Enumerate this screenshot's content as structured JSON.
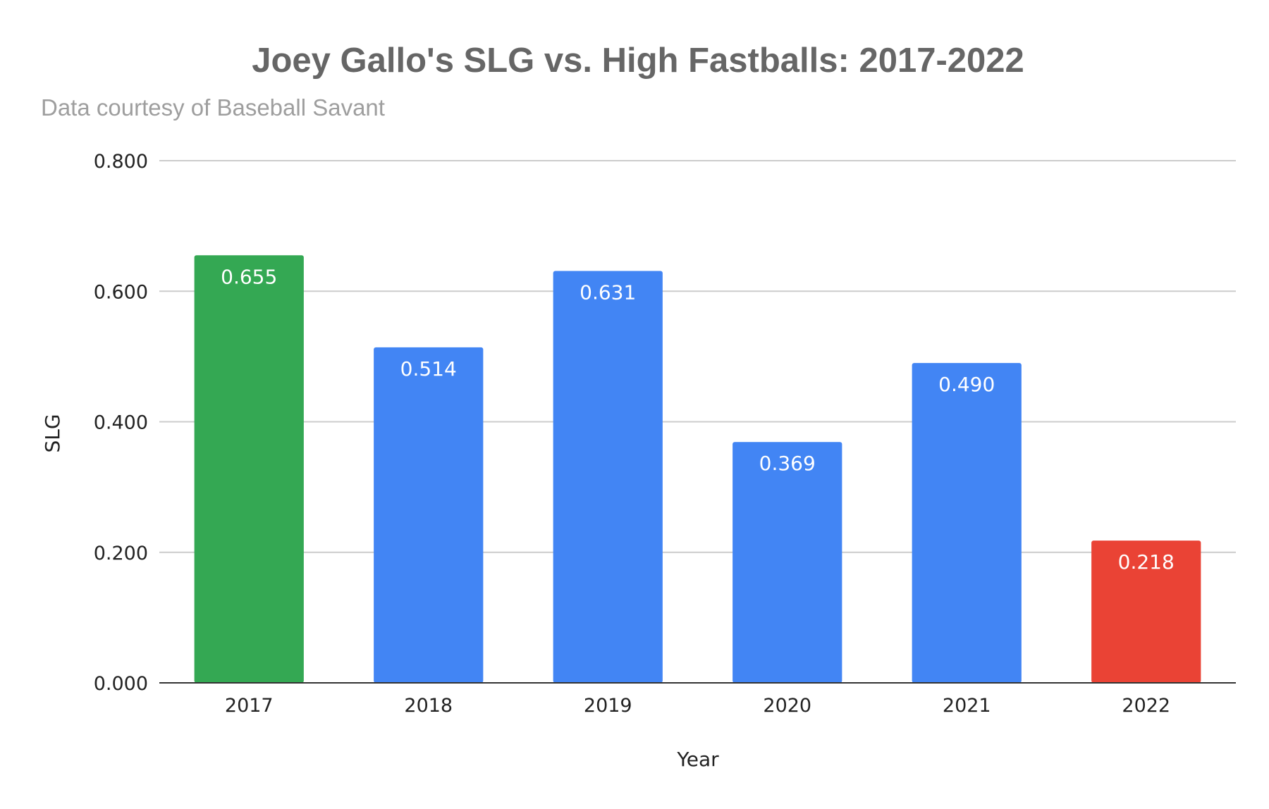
{
  "chart_data": {
    "type": "bar",
    "title": "Joey Gallo's SLG vs. High Fastballs: 2017-2022",
    "subtitle": "Data courtesy of Baseball Savant",
    "xlabel": "Year",
    "ylabel": "SLG",
    "categories": [
      "2017",
      "2018",
      "2019",
      "2020",
      "2021",
      "2022"
    ],
    "values": [
      0.655,
      0.514,
      0.631,
      0.369,
      0.49,
      0.218
    ],
    "data_labels": [
      "0.655",
      "0.514",
      "0.631",
      "0.369",
      "0.490",
      "0.218"
    ],
    "bar_colors": [
      "#34a853",
      "#4285f4",
      "#4285f4",
      "#4285f4",
      "#4285f4",
      "#ea4335"
    ],
    "ylim": [
      0,
      0.8
    ],
    "yticks": [
      0,
      0.2,
      0.4,
      0.6,
      0.8
    ],
    "ytick_labels": [
      "0.000",
      "0.200",
      "0.400",
      "0.600",
      "0.800"
    ],
    "grid": true,
    "legend": "none"
  }
}
